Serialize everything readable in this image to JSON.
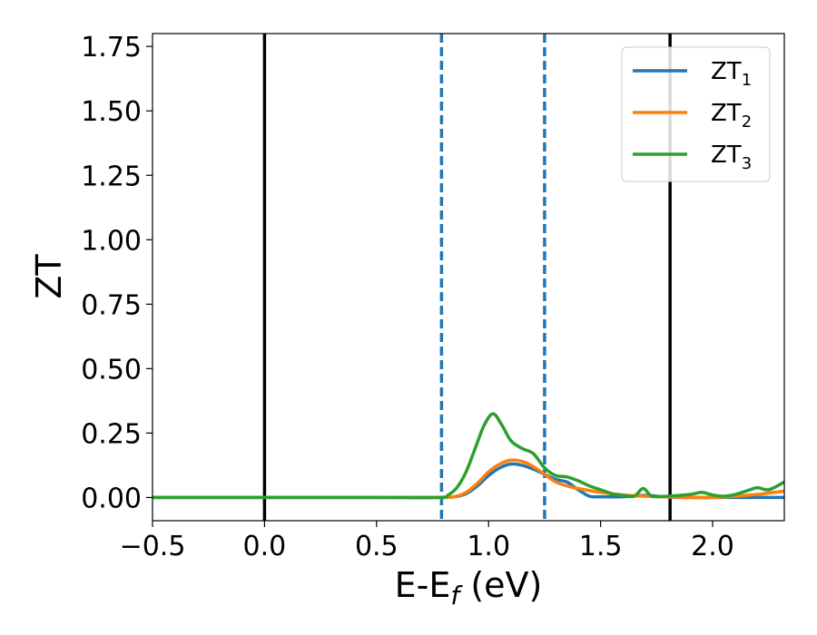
{
  "chart_data": {
    "type": "line",
    "title": "",
    "xlabel": "E-E",
    "xlabel_sub": "f",
    "xlabel_unit": " (eV)",
    "ylabel": "ZT",
    "xlim": [
      -0.5,
      2.32
    ],
    "ylim": [
      -0.09,
      1.8
    ],
    "grid": false,
    "legend_position": "top-right",
    "x_ticks": [
      -0.5,
      0.0,
      0.5,
      1.0,
      1.5,
      2.0
    ],
    "x_tick_labels": [
      "−0.5",
      "0.0",
      "0.5",
      "1.0",
      "1.5",
      "2.0"
    ],
    "y_ticks": [
      0.0,
      0.25,
      0.5,
      0.75,
      1.0,
      1.25,
      1.5,
      1.75
    ],
    "y_tick_labels": [
      "0.00",
      "0.25",
      "0.50",
      "0.75",
      "1.00",
      "1.25",
      "1.50",
      "1.75"
    ],
    "vertical_lines": [
      {
        "x": 0.0,
        "color": "#000000",
        "style": "solid"
      },
      {
        "x": 1.81,
        "color": "#000000",
        "style": "solid"
      },
      {
        "x": 0.79,
        "color": "#1f77b4",
        "style": "dashed"
      },
      {
        "x": 1.25,
        "color": "#1f77b4",
        "style": "dashed"
      }
    ],
    "series": [
      {
        "name": "ZT",
        "name_sub": "1",
        "color": "#1f77b4",
        "x": [
          -0.5,
          0.0,
          0.5,
          0.78,
          0.85,
          0.9,
          0.95,
          1.0,
          1.05,
          1.1,
          1.15,
          1.2,
          1.25,
          1.3,
          1.35,
          1.4,
          1.45,
          1.5,
          1.6,
          1.7,
          1.8,
          1.9,
          2.0,
          2.1,
          2.2,
          2.32
        ],
        "y": [
          0.0,
          0.0,
          0.0,
          0.0,
          0.003,
          0.015,
          0.045,
          0.085,
          0.115,
          0.13,
          0.125,
          0.11,
          0.09,
          0.07,
          0.06,
          0.03,
          0.005,
          0.003,
          0.003,
          0.008,
          0.002,
          0.0,
          0.0,
          0.0,
          0.0,
          0.0
        ]
      },
      {
        "name": "ZT",
        "name_sub": "2",
        "color": "#ff7f0e",
        "x": [
          -0.5,
          0.0,
          0.5,
          0.78,
          0.85,
          0.9,
          0.95,
          1.0,
          1.05,
          1.1,
          1.15,
          1.2,
          1.25,
          1.3,
          1.35,
          1.4,
          1.5,
          1.6,
          1.7,
          1.8,
          1.9,
          2.0,
          2.1,
          2.2,
          2.32
        ],
        "y": [
          0.0,
          0.0,
          0.0,
          0.0,
          0.004,
          0.02,
          0.055,
          0.1,
          0.13,
          0.145,
          0.14,
          0.12,
          0.09,
          0.06,
          0.045,
          0.035,
          0.02,
          0.01,
          0.005,
          0.002,
          0.0,
          0.0,
          0.005,
          0.012,
          0.025
        ]
      },
      {
        "name": "ZT",
        "name_sub": "3",
        "color": "#2ca02c",
        "x": [
          -0.5,
          0.0,
          0.5,
          0.78,
          0.82,
          0.86,
          0.9,
          0.94,
          0.98,
          1.02,
          1.06,
          1.1,
          1.15,
          1.2,
          1.25,
          1.3,
          1.35,
          1.4,
          1.45,
          1.5,
          1.55,
          1.6,
          1.65,
          1.69,
          1.73,
          1.8,
          1.9,
          1.95,
          2.0,
          2.05,
          2.1,
          2.15,
          2.2,
          2.25,
          2.32
        ],
        "y": [
          0.0,
          0.0,
          0.0,
          0.0,
          0.01,
          0.04,
          0.1,
          0.19,
          0.28,
          0.325,
          0.28,
          0.22,
          0.19,
          0.17,
          0.115,
          0.085,
          0.08,
          0.065,
          0.045,
          0.03,
          0.015,
          0.008,
          0.005,
          0.035,
          0.005,
          0.005,
          0.012,
          0.02,
          0.01,
          0.005,
          0.012,
          0.025,
          0.038,
          0.03,
          0.06
        ]
      }
    ]
  }
}
